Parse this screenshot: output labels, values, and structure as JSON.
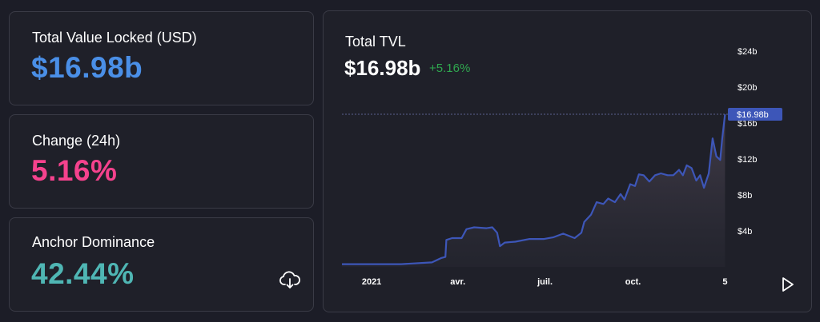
{
  "stats": {
    "tvl": {
      "label": "Total Value Locked (USD)",
      "value": "$16.98b",
      "color": "#4a8fe7"
    },
    "change": {
      "label": "Change (24h)",
      "value": "5.16%",
      "color": "#f5428d"
    },
    "dominance": {
      "label": "Anchor Dominance",
      "value": "42.44%",
      "color": "#4fb6b4"
    }
  },
  "icons": {
    "download": "download-cloud-icon",
    "play": "play-icon"
  },
  "chart": {
    "title": "Total TVL",
    "value": "$16.98b",
    "change": "+5.16%",
    "change_color": "#2fa84f",
    "line_color": "#3d56b8",
    "current_label": "$16.98b"
  },
  "chart_data": {
    "type": "area",
    "title": "Total TVL",
    "y_tick_labels": [
      "$24b",
      "$20b",
      "$16b",
      "$12b",
      "$8b",
      "$4b"
    ],
    "y_ticks": [
      24,
      20,
      16,
      12,
      8,
      4
    ],
    "x_tick_labels": [
      "2021",
      "avr.",
      "juil.",
      "oct.",
      "5"
    ],
    "x_ticks": [
      "2021-01-01",
      "2021-04-01",
      "2021-07-01",
      "2021-10-01",
      "2022-01-05"
    ],
    "ylim": [
      0,
      26.5
    ],
    "xlim": [
      "2020-12-01",
      "2022-01-08"
    ],
    "current_value": 16.98,
    "series": [
      {
        "x": [
          "2020-12-01",
          "2021-01-01",
          "2021-02-01",
          "2021-03-05",
          "2021-03-15",
          "2021-03-19",
          "2021-03-20",
          "2021-03-26",
          "2021-04-05",
          "2021-04-10",
          "2021-04-18",
          "2021-05-01",
          "2021-05-07",
          "2021-05-12",
          "2021-05-15",
          "2021-05-20",
          "2021-05-31",
          "2021-06-15",
          "2021-06-30",
          "2021-07-10",
          "2021-07-20",
          "2021-08-01",
          "2021-08-08",
          "2021-08-11",
          "2021-08-18",
          "2021-08-24",
          "2021-08-31",
          "2021-09-05",
          "2021-09-12",
          "2021-09-18",
          "2021-09-22",
          "2021-09-28",
          "2021-10-03",
          "2021-10-07",
          "2021-10-12",
          "2021-10-18",
          "2021-10-24",
          "2021-10-30",
          "2021-11-06",
          "2021-11-12",
          "2021-11-18",
          "2021-11-22",
          "2021-11-26",
          "2021-12-01",
          "2021-12-06",
          "2021-12-10",
          "2021-12-14",
          "2021-12-19",
          "2021-12-23",
          "2021-12-27",
          "2021-12-31",
          "2022-01-02",
          "2022-01-05"
        ],
        "y": [
          0.3,
          0.3,
          0.3,
          0.5,
          1.0,
          1.1,
          3.0,
          3.2,
          3.2,
          4.2,
          4.4,
          4.3,
          4.4,
          3.8,
          2.3,
          2.7,
          2.8,
          3.1,
          3.1,
          3.3,
          3.7,
          3.2,
          3.8,
          5.0,
          5.8,
          7.2,
          7.0,
          7.6,
          7.2,
          8.1,
          7.5,
          9.2,
          9.0,
          10.3,
          10.2,
          9.5,
          10.2,
          10.4,
          10.2,
          10.2,
          10.8,
          10.2,
          11.3,
          11.0,
          9.6,
          10.2,
          8.8,
          10.4,
          14.3,
          12.3,
          11.9,
          14.2,
          16.98
        ]
      }
    ]
  }
}
